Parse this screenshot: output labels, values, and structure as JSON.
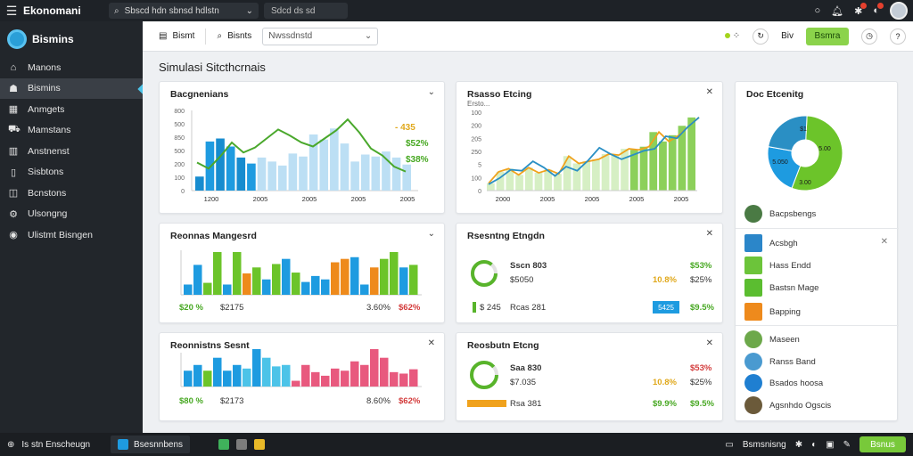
{
  "topbar": {
    "app_title": "Ekonomani",
    "search_text": "Sbscd hdn sbnsd hdlstn",
    "field_text": "Sdcd ds sd",
    "icons": [
      "search-icon",
      "bell-icon",
      "notification-icon",
      "alert-icon",
      "avatar"
    ]
  },
  "sidebar": {
    "brand": "Bismins",
    "items": [
      {
        "label": "Manons",
        "icon": "home-icon"
      },
      {
        "label": "Bismins",
        "icon": "people-icon",
        "active": true
      },
      {
        "label": "Anmgets",
        "icon": "grid-icon"
      },
      {
        "label": "Mamstans",
        "icon": "car-icon"
      },
      {
        "label": "Anstnenst",
        "icon": "book-icon"
      },
      {
        "label": "Sisbtons",
        "icon": "document-icon"
      },
      {
        "label": "Bcnstons",
        "icon": "clipboard-icon"
      },
      {
        "label": "Ulsongng",
        "icon": "gear-icon"
      },
      {
        "label": "Ulistmt Bisngen",
        "icon": "settings-icon"
      }
    ]
  },
  "toolbar": {
    "btn1": "Bismt",
    "btn2": "Bisnts",
    "select_value": "Nwssdnstd",
    "label_right": "Biv",
    "action": "Bsmra"
  },
  "page_title": "Simulasi Sitcthcrnais",
  "cards": {
    "c1": {
      "title": "Bacgnenians",
      "ticks": [
        "800",
        "500",
        "850",
        "500",
        "200",
        "100",
        "0"
      ],
      "xlabels": [
        "1200",
        "2005",
        "2005",
        "2005",
        "2005"
      ],
      "legend": [
        "- 435",
        "$52%",
        "$38%"
      ]
    },
    "c2": {
      "title": "Rsasso Etcing",
      "subtitle": "Ersto...",
      "ticks": [
        "100",
        "200",
        "205",
        "250",
        "5",
        "100",
        "0"
      ],
      "xlabels": [
        "2000",
        "2005",
        "2005",
        "2005",
        "2005"
      ]
    },
    "c3": {
      "title": "Doc Etcenitg",
      "pie_labels": [
        "5.00",
        "5.050",
        "3.00",
        "$1"
      ]
    },
    "c4": {
      "title": "Reonnas Mangesrd",
      "left_val": "$20 %",
      "mid_val": "$2175",
      "r1": "3.60%",
      "r2": "$62%"
    },
    "c5": {
      "title": "Rsesntng Etngdn",
      "row1_name": "Sscn 803",
      "row1_sub": "$5050",
      "row1_v1": "$53%",
      "row1_v2": "10.8%",
      "row1_v3": "$25%",
      "row2_name": "$ 245",
      "row2_sub": "Rcas 281",
      "row2_v1": "5425",
      "row2_v2": "$9.5%"
    },
    "c6": {
      "title": "Reonnistns Sesnt",
      "left_val": "$80 %",
      "mid_val": "$2173",
      "r1": "8.60%",
      "r2": "$62%"
    },
    "c7": {
      "title": "Reosbutn Etcng",
      "row1_name": "Saa 830",
      "row1_sub": "$7.035",
      "row1_v1": "$53%",
      "row1_v2": "10.8%",
      "row1_v3": "$25%",
      "row2_name": "Rsa 381",
      "row2_v1": "$9.9%",
      "row2_v2": "$9.5%"
    }
  },
  "right_list": [
    {
      "label": "Bacpsbengs",
      "color": "#4a7a44",
      "round": true
    },
    {
      "label": "Acsbgh",
      "color": "#2b86c9",
      "round": false
    },
    {
      "label": "Hass Endd",
      "color": "#6cc43a",
      "round": false
    },
    {
      "label": "Bastsn Mage",
      "color": "#5bbd30",
      "round": false
    },
    {
      "label": "Bapping",
      "color": "#ee8a1c",
      "round": false
    },
    {
      "label": "Maseen",
      "color": "#6ca84a",
      "round": true
    },
    {
      "label": "Ranss Band",
      "color": "#4a9ad0",
      "round": true
    },
    {
      "label": "Bsados hoosa",
      "color": "#1f7fd1",
      "round": true
    },
    {
      "label": "Agsnhdo Ogscis",
      "color": "#6b5a3a",
      "round": true
    }
  ],
  "taskbar": {
    "start_label": "Is stn Enscheugn",
    "task_label": "Bsesnnbens",
    "tray_items": [
      "Bsmsnisng"
    ],
    "tray_btn": "Bsnus"
  },
  "colors": {
    "accent_green": "#78c93a",
    "accent_blue": "#1e9be0",
    "accent_orange": "#ee8a1c",
    "sidebar_bg": "#22262b"
  },
  "chart_data": [
    {
      "type": "bar",
      "title": "Bacgnenians",
      "series": [
        {
          "values": [
            140,
            490,
            520,
            440,
            330,
            270,
            330,
            290,
            250,
            370,
            340,
            560,
            510,
            620,
            470,
            290,
            360,
            340,
            390,
            330,
            260
          ]
        },
        {
          "values": [
            280,
            220,
            340,
            480,
            380,
            430,
            520,
            610,
            550,
            480,
            440,
            520,
            600,
            710,
            580,
            420,
            350,
            240,
            190
          ]
        }
      ]
    },
    {
      "type": "line",
      "title": "Rsasso Etcing",
      "series": [
        {
          "values": [
            70,
            180,
            210,
            150,
            220,
            170,
            200,
            160,
            330,
            260,
            280,
            300,
            350,
            340,
            400,
            390,
            420,
            560,
            470,
            530,
            620,
            700
          ]
        },
        {
          "values": [
            60,
            120,
            200,
            190,
            280,
            220,
            140,
            230,
            190,
            290,
            410,
            350,
            300,
            340,
            380,
            400,
            520,
            500,
            610,
            700
          ]
        }
      ]
    },
    {
      "type": "pie",
      "title": "Doc Etcenitg",
      "values": [
        55,
        22,
        23
      ]
    },
    {
      "type": "bar",
      "title": "Reonnas Mangesrd",
      "values": [
        12,
        35,
        14,
        50,
        12,
        50,
        25,
        32,
        18,
        36,
        42,
        26,
        15,
        22,
        18,
        38,
        42,
        44,
        12,
        32,
        42,
        50,
        32,
        35
      ]
    },
    {
      "type": "bar",
      "title": "Reonnistns Sesnt",
      "values": [
        22,
        30,
        22,
        40,
        22,
        30,
        25,
        52,
        40,
        28,
        30,
        8,
        30,
        20,
        15,
        25,
        22,
        35,
        30,
        52,
        40,
        20,
        18,
        24
      ]
    }
  ]
}
